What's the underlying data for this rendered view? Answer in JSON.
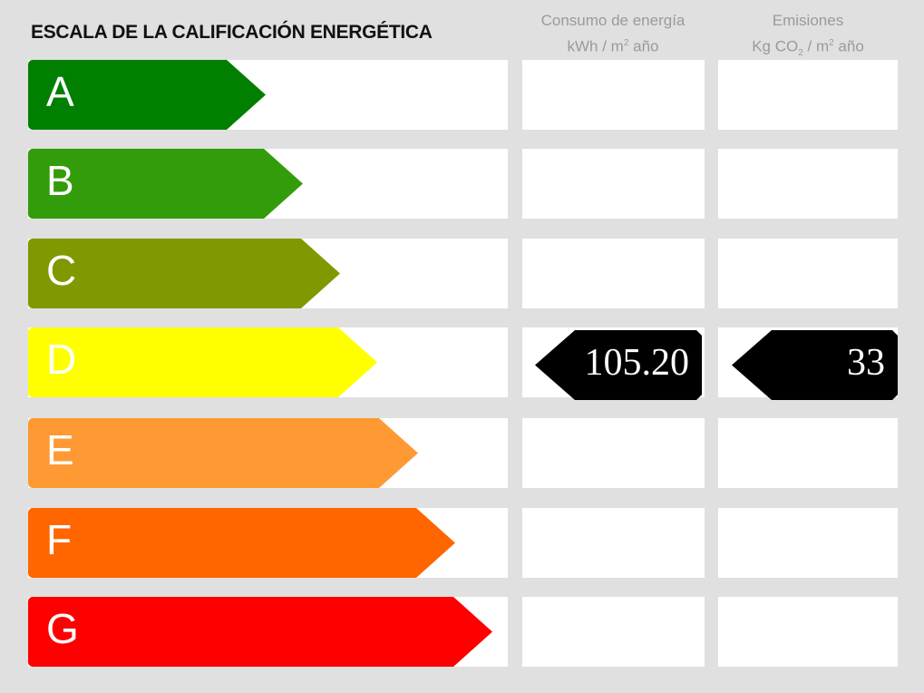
{
  "title": "ESCALA DE LA CALIFICACIÓN ENERGÉTICA",
  "columns": {
    "consumo": {
      "line1": "Consumo de energía",
      "unit_pre": "kWh / m",
      "unit_sup": "2",
      "unit_post": " año"
    },
    "emisiones": {
      "line1": "Emisiones",
      "unit_pre": "Kg CO",
      "unit_sub": "2",
      "unit_mid": " / m",
      "unit_sup": "2",
      "unit_post": " año"
    }
  },
  "ratings": [
    {
      "letter": "A",
      "color": "#007f00"
    },
    {
      "letter": "B",
      "color": "#339c0a"
    },
    {
      "letter": "C",
      "color": "#809900"
    },
    {
      "letter": "D",
      "color": "#ffff00"
    },
    {
      "letter": "E",
      "color": "#ff9933"
    },
    {
      "letter": "F",
      "color": "#ff6600"
    },
    {
      "letter": "G",
      "color": "#ff0000"
    }
  ],
  "current_rating": "D",
  "values": {
    "consumo": "105.20",
    "emisiones": "33"
  }
}
